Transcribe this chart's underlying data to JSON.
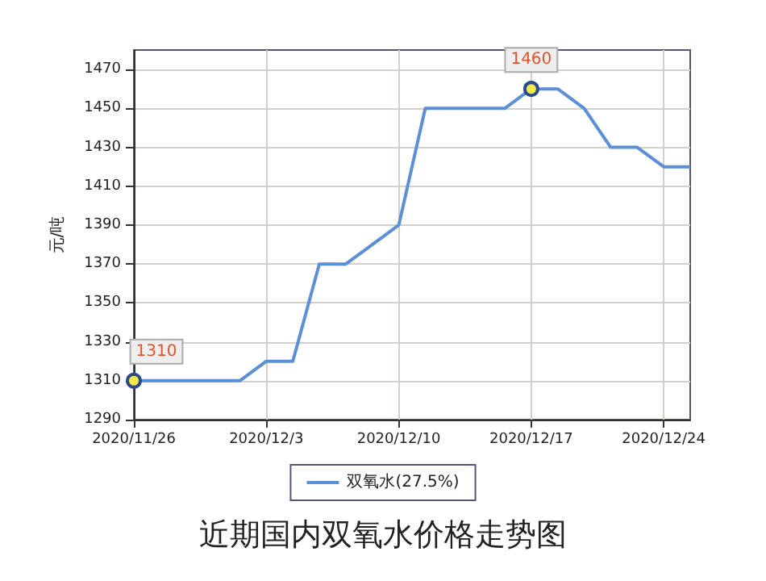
{
  "chart_data": {
    "type": "line",
    "title": "近期国内双氧水价格走势图",
    "ylabel": "元/吨",
    "categories": [
      "2020/11/26",
      null,
      null,
      null,
      null,
      "2020/12/3",
      null,
      null,
      null,
      null,
      "2020/12/10",
      null,
      null,
      null,
      null,
      "2020/12/17",
      null,
      null,
      null,
      null,
      "2020/12/24",
      null
    ],
    "series": [
      {
        "name": "双氧水(27.5%)",
        "color": "#5b8fd6",
        "values": [
          1310,
          1310,
          1310,
          1310,
          1310,
          1320,
          1320,
          1370,
          1370,
          1380,
          1390,
          1450,
          1450,
          1450,
          1450,
          1460,
          1460,
          1450,
          1430,
          1430,
          1420,
          1420
        ],
        "value_labels": [
          "1310",
          null,
          null,
          null,
          null,
          null,
          null,
          null,
          null,
          null,
          null,
          null,
          null,
          null,
          null,
          "1460",
          null,
          null,
          null,
          null,
          null,
          null
        ]
      }
    ],
    "ylim": [
      1290,
      1480
    ],
    "yticks": [
      1290,
      1310,
      1330,
      1350,
      1370,
      1390,
      1410,
      1430,
      1450,
      1470
    ],
    "grid": true,
    "legend": "bottom"
  }
}
